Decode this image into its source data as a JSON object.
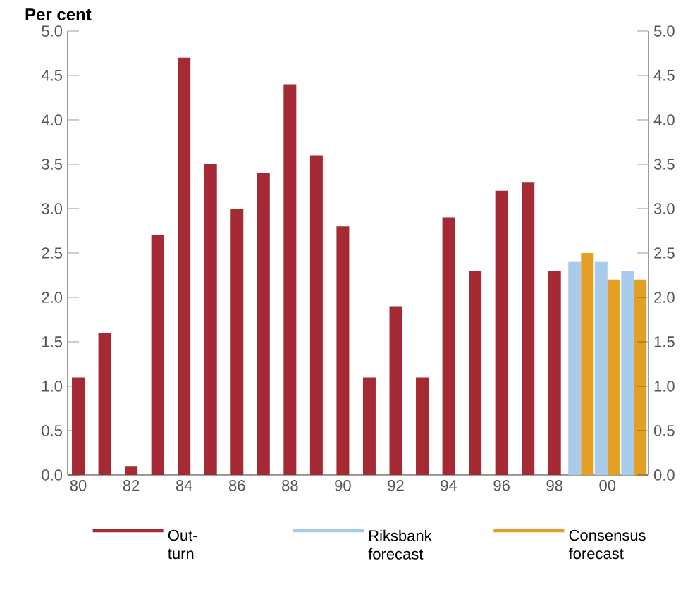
{
  "chart_data": {
    "type": "bar",
    "ylabel": "Per cent",
    "categories": [
      "80",
      null,
      "82",
      null,
      "84",
      null,
      "86",
      null,
      "88",
      null,
      "90",
      null,
      "92",
      null,
      "94",
      null,
      "96",
      null,
      "98",
      null,
      "00",
      null
    ],
    "series": [
      {
        "name": "Out-turn",
        "color": "#a52a33",
        "values": [
          1.1,
          1.6,
          0.1,
          2.7,
          4.7,
          3.5,
          3.0,
          3.4,
          4.4,
          3.6,
          2.8,
          1.1,
          1.9,
          1.1,
          2.9,
          2.3,
          3.2,
          3.3,
          2.3,
          null,
          null,
          null
        ]
      },
      {
        "name": "Riksbank forecast",
        "color": "#a9cbea",
        "values": [
          null,
          null,
          null,
          null,
          null,
          null,
          null,
          null,
          null,
          null,
          null,
          null,
          null,
          null,
          null,
          null,
          null,
          null,
          null,
          2.4,
          2.4,
          2.3
        ]
      },
      {
        "name": "Consensus forecast",
        "color": "#e4a024",
        "values": [
          null,
          null,
          null,
          null,
          null,
          null,
          null,
          null,
          null,
          null,
          null,
          null,
          null,
          null,
          null,
          null,
          null,
          null,
          null,
          2.5,
          2.2,
          2.2
        ]
      }
    ],
    "ylim": [
      0,
      5
    ],
    "yticks": [
      {
        "value": 0,
        "label": "0.0"
      },
      {
        "value": 0.5,
        "label": "0.5"
      },
      {
        "value": 1,
        "label": "1.0"
      },
      {
        "value": 1.5,
        "label": "1.5"
      },
      {
        "value": 2,
        "label": "2.0"
      },
      {
        "value": 2.5,
        "label": "2.5"
      },
      {
        "value": 3,
        "label": "3.0"
      },
      {
        "value": 3.5,
        "label": "3.5"
      },
      {
        "value": 4,
        "label": "4.0"
      },
      {
        "value": 4.5,
        "label": "4.5"
      },
      {
        "value": 5,
        "label": "5.0"
      }
    ],
    "y2lim": [
      0,
      5
    ],
    "y2ticks": [
      {
        "value": 0,
        "label": "0.0"
      },
      {
        "value": 0.5,
        "label": "0.5"
      },
      {
        "value": 1,
        "label": "1.0"
      },
      {
        "value": 1.5,
        "label": "1.5"
      },
      {
        "value": 2,
        "label": "2.0"
      },
      {
        "value": 2.5,
        "label": "2.5"
      },
      {
        "value": 3,
        "label": "3.0"
      },
      {
        "value": 3.5,
        "label": "3.5"
      },
      {
        "value": 4,
        "label": "4.0"
      },
      {
        "value": 4.5,
        "label": "4.5"
      },
      {
        "value": 5,
        "label": "5.0"
      }
    ],
    "legend": "bottom"
  }
}
